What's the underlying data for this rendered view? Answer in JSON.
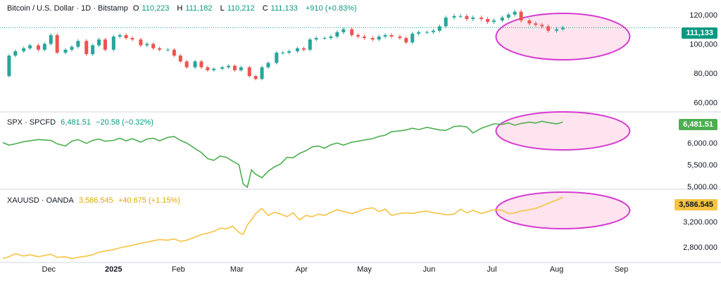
{
  "chart_data": [
    {
      "type": "candlestick",
      "title": "Bitcoin / U.S. Dollar · 1D · Bitstamp",
      "ohlc": {
        "O_label": "O",
        "O": "110,223",
        "H_label": "H",
        "H": "111,182",
        "L_label": "L",
        "L": "110,212",
        "C_label": "C",
        "C": "111,133",
        "change": "+910 (+0.83%)"
      },
      "last_value": "111,133",
      "y_ticks": [
        "120,000",
        "100,000",
        "80,000",
        "60,000"
      ],
      "y_tick_values": [
        120000,
        100000,
        80000,
        60000
      ],
      "ylim": [
        54000,
        130000
      ],
      "close_series": [
        [
          0,
          78000
        ],
        [
          3,
          92000
        ],
        [
          6,
          95000
        ],
        [
          10,
          97000
        ],
        [
          13,
          99000
        ],
        [
          17,
          96000
        ],
        [
          20,
          100000
        ],
        [
          23,
          106000
        ],
        [
          26,
          94000
        ],
        [
          30,
          96000
        ],
        [
          33,
          98000
        ],
        [
          36,
          102000
        ],
        [
          40,
          93000
        ],
        [
          43,
          99000
        ],
        [
          46,
          103000
        ],
        [
          49,
          96000
        ],
        [
          53,
          105000
        ],
        [
          56,
          106000
        ],
        [
          59,
          104000
        ],
        [
          62,
          103000
        ],
        [
          66,
          99000
        ],
        [
          69,
          100000
        ],
        [
          72,
          97000
        ],
        [
          75,
          96000
        ],
        [
          79,
          96000
        ],
        [
          82,
          92000
        ],
        [
          85,
          88000
        ],
        [
          88,
          84000
        ],
        [
          92,
          88000
        ],
        [
          95,
          84000
        ],
        [
          98,
          82000
        ],
        [
          101,
          83000
        ],
        [
          105,
          84000
        ],
        [
          108,
          85000
        ],
        [
          111,
          82000
        ],
        [
          114,
          84000
        ],
        [
          118,
          78000
        ],
        [
          121,
          76000
        ],
        [
          124,
          84000
        ],
        [
          127,
          87000
        ],
        [
          131,
          94000
        ],
        [
          134,
          94000
        ],
        [
          137,
          95000
        ],
        [
          141,
          97000
        ],
        [
          144,
          96000
        ],
        [
          147,
          103000
        ],
        [
          150,
          104000
        ],
        [
          154,
          104000
        ],
        [
          157,
          105000
        ],
        [
          160,
          108000
        ],
        [
          163,
          110000
        ],
        [
          167,
          106000
        ],
        [
          170,
          105000
        ],
        [
          173,
          104000
        ],
        [
          177,
          103000
        ],
        [
          180,
          105000
        ],
        [
          183,
          106000
        ],
        [
          186,
          105000
        ],
        [
          190,
          104000
        ],
        [
          193,
          101000
        ],
        [
          196,
          107000
        ],
        [
          199,
          108000
        ],
        [
          203,
          108000
        ],
        [
          206,
          109000
        ],
        [
          209,
          112000
        ],
        [
          212,
          118000
        ],
        [
          216,
          119000
        ],
        [
          219,
          119000
        ],
        [
          222,
          117000
        ],
        [
          225,
          118000
        ],
        [
          229,
          117000
        ],
        [
          232,
          115000
        ],
        [
          235,
          116000
        ],
        [
          239,
          118000
        ],
        [
          242,
          120000
        ],
        [
          245,
          122000
        ],
        [
          248,
          116000
        ],
        [
          252,
          114000
        ],
        [
          255,
          113000
        ],
        [
          258,
          112000
        ],
        [
          261,
          109000
        ],
        [
          265,
          110000
        ],
        [
          268,
          111133
        ]
      ],
      "ellipse_highlight": "Jul–Sep"
    },
    {
      "type": "line",
      "title": "SPX · SPCFD",
      "last": "6,481.51",
      "change": "−20.58 (−0.32%)",
      "last_value": "6,481.51",
      "color": "#4caf50",
      "y_ticks": [
        "6,000.00",
        "5,500.00",
        "5,000.00"
      ],
      "y_tick_values": [
        6000,
        5500,
        5000
      ],
      "ylim": [
        4950,
        6700
      ],
      "series": [
        [
          0,
          6010
        ],
        [
          3,
          5950
        ],
        [
          6,
          5980
        ],
        [
          10,
          6030
        ],
        [
          13,
          6050
        ],
        [
          17,
          6080
        ],
        [
          20,
          6070
        ],
        [
          23,
          6060
        ],
        [
          26,
          5980
        ],
        [
          30,
          5930
        ],
        [
          33,
          6040
        ],
        [
          36,
          6080
        ],
        [
          40,
          5990
        ],
        [
          43,
          6060
        ],
        [
          46,
          6090
        ],
        [
          49,
          6040
        ],
        [
          53,
          6060
        ],
        [
          56,
          6110
        ],
        [
          59,
          6050
        ],
        [
          62,
          6100
        ],
        [
          66,
          6020
        ],
        [
          69,
          6090
        ],
        [
          72,
          6110
        ],
        [
          75,
          6050
        ],
        [
          79,
          6130
        ],
        [
          82,
          6150
        ],
        [
          85,
          6060
        ],
        [
          88,
          6000
        ],
        [
          92,
          5870
        ],
        [
          95,
          5780
        ],
        [
          98,
          5640
        ],
        [
          101,
          5600
        ],
        [
          104,
          5700
        ],
        [
          107,
          5670
        ],
        [
          110,
          5580
        ],
        [
          113,
          5500
        ],
        [
          115,
          5060
        ],
        [
          117,
          4980
        ],
        [
          119,
          5380
        ],
        [
          121,
          5280
        ],
        [
          124,
          5200
        ],
        [
          127,
          5350
        ],
        [
          130,
          5450
        ],
        [
          133,
          5520
        ],
        [
          136,
          5670
        ],
        [
          139,
          5660
        ],
        [
          142,
          5760
        ],
        [
          145,
          5820
        ],
        [
          148,
          5910
        ],
        [
          151,
          5930
        ],
        [
          154,
          5880
        ],
        [
          157,
          5960
        ],
        [
          160,
          6000
        ],
        [
          163,
          5950
        ],
        [
          167,
          6020
        ],
        [
          170,
          6040
        ],
        [
          173,
          6070
        ],
        [
          177,
          6100
        ],
        [
          180,
          6150
        ],
        [
          183,
          6180
        ],
        [
          186,
          6260
        ],
        [
          190,
          6280
        ],
        [
          193,
          6300
        ],
        [
          196,
          6340
        ],
        [
          199,
          6310
        ],
        [
          203,
          6360
        ],
        [
          206,
          6330
        ],
        [
          209,
          6300
        ],
        [
          212,
          6290
        ],
        [
          216,
          6380
        ],
        [
          219,
          6390
        ],
        [
          222,
          6370
        ],
        [
          225,
          6230
        ],
        [
          229,
          6340
        ],
        [
          232,
          6390
        ],
        [
          235,
          6440
        ],
        [
          239,
          6430
        ],
        [
          242,
          6460
        ],
        [
          245,
          6410
        ],
        [
          248,
          6450
        ],
        [
          252,
          6480
        ],
        [
          255,
          6460
        ],
        [
          258,
          6500
        ],
        [
          261,
          6470
        ],
        [
          265,
          6440
        ],
        [
          268,
          6481.51
        ]
      ],
      "ellipse_highlight": "Jul–Sep"
    },
    {
      "type": "line",
      "title": "XAUUSD · OANDA",
      "last": "3,586.545",
      "change": "+40.675 (+1.15%)",
      "last_value": "3,586.545",
      "color": "#f6c343",
      "y_ticks": [
        "3,200.000",
        "2,800.000"
      ],
      "y_tick_values": [
        3200,
        2800
      ],
      "ylim": [
        2570,
        3700
      ],
      "series": [
        [
          0,
          2620
        ],
        [
          3,
          2650
        ],
        [
          6,
          2700
        ],
        [
          10,
          2660
        ],
        [
          13,
          2680
        ],
        [
          17,
          2650
        ],
        [
          20,
          2670
        ],
        [
          23,
          2690
        ],
        [
          26,
          2640
        ],
        [
          30,
          2650
        ],
        [
          33,
          2620
        ],
        [
          36,
          2640
        ],
        [
          40,
          2660
        ],
        [
          43,
          2680
        ],
        [
          46,
          2720
        ],
        [
          49,
          2740
        ],
        [
          53,
          2760
        ],
        [
          56,
          2790
        ],
        [
          59,
          2810
        ],
        [
          62,
          2830
        ],
        [
          66,
          2860
        ],
        [
          69,
          2880
        ],
        [
          72,
          2900
        ],
        [
          75,
          2920
        ],
        [
          79,
          2910
        ],
        [
          82,
          2930
        ],
        [
          85,
          2890
        ],
        [
          88,
          2910
        ],
        [
          92,
          2960
        ],
        [
          95,
          3000
        ],
        [
          98,
          3020
        ],
        [
          101,
          3050
        ],
        [
          104,
          3100
        ],
        [
          107,
          3090
        ],
        [
          110,
          3130
        ],
        [
          113,
          3030
        ],
        [
          115,
          3000
        ],
        [
          117,
          3150
        ],
        [
          119,
          3230
        ],
        [
          121,
          3330
        ],
        [
          124,
          3410
        ],
        [
          127,
          3300
        ],
        [
          130,
          3350
        ],
        [
          133,
          3320
        ],
        [
          136,
          3280
        ],
        [
          139,
          3340
        ],
        [
          142,
          3230
        ],
        [
          145,
          3300
        ],
        [
          148,
          3280
        ],
        [
          151,
          3320
        ],
        [
          154,
          3300
        ],
        [
          157,
          3350
        ],
        [
          160,
          3390
        ],
        [
          163,
          3360
        ],
        [
          167,
          3330
        ],
        [
          170,
          3360
        ],
        [
          173,
          3400
        ],
        [
          177,
          3420
        ],
        [
          180,
          3360
        ],
        [
          183,
          3400
        ],
        [
          186,
          3300
        ],
        [
          190,
          3330
        ],
        [
          193,
          3340
        ],
        [
          196,
          3330
        ],
        [
          199,
          3350
        ],
        [
          203,
          3370
        ],
        [
          206,
          3340
        ],
        [
          209,
          3330
        ],
        [
          212,
          3310
        ],
        [
          216,
          3320
        ],
        [
          219,
          3400
        ],
        [
          222,
          3340
        ],
        [
          225,
          3380
        ],
        [
          229,
          3330
        ],
        [
          232,
          3360
        ],
        [
          235,
          3390
        ],
        [
          239,
          3380
        ],
        [
          242,
          3330
        ],
        [
          245,
          3340
        ],
        [
          248,
          3370
        ],
        [
          252,
          3390
        ],
        [
          255,
          3410
        ],
        [
          258,
          3450
        ],
        [
          261,
          3490
        ],
        [
          265,
          3540
        ],
        [
          268,
          3586.545
        ]
      ],
      "ellipse_highlight": "Jul–Sep"
    }
  ],
  "x_axis": {
    "labels": [
      {
        "label": "Dec",
        "day": 22
      },
      {
        "label": "2025",
        "day": 53,
        "bold": true
      },
      {
        "label": "Feb",
        "day": 84
      },
      {
        "label": "Mar",
        "day": 112
      },
      {
        "label": "Apr",
        "day": 143
      },
      {
        "label": "May",
        "day": 173
      },
      {
        "label": "Jun",
        "day": 204
      },
      {
        "label": "Jul",
        "day": 234
      },
      {
        "label": "Aug",
        "day": 265
      },
      {
        "label": "Sep",
        "day": 296
      }
    ],
    "domain": [
      0,
      312
    ]
  },
  "colors": {
    "up": "#26a69a",
    "down": "#ef5350",
    "ellipse_stroke": "#d63bd2",
    "ellipse_fill": "#fde4ee",
    "btc_badge": "#089981",
    "grid": "#d1d4dc",
    "label": "#131722"
  }
}
